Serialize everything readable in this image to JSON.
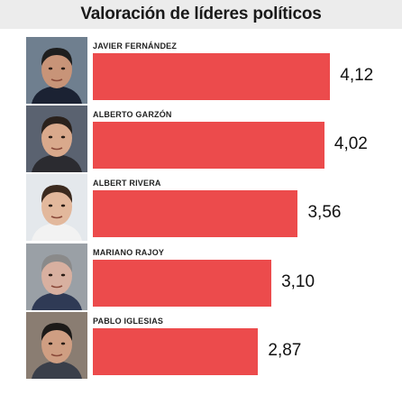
{
  "title": "Valoración de líderes políticos",
  "chart_data": {
    "type": "bar",
    "orientation": "horizontal",
    "title": "Valoración de líderes políticos",
    "categories": [
      "JAVIER FERNÁNDEZ",
      "ALBERTO GARZÓN",
      "ALBERT RIVERA",
      "MARIANO RAJOY",
      "PABLO IGLESIAS"
    ],
    "values": [
      4.12,
      4.02,
      3.56,
      3.1,
      2.87
    ],
    "value_labels": [
      "4,12",
      "4,02",
      "3,56",
      "3,10",
      "2,87"
    ],
    "xlabel": "",
    "ylabel": "",
    "bar_color": "#ec4b4c",
    "grid": false
  }
}
